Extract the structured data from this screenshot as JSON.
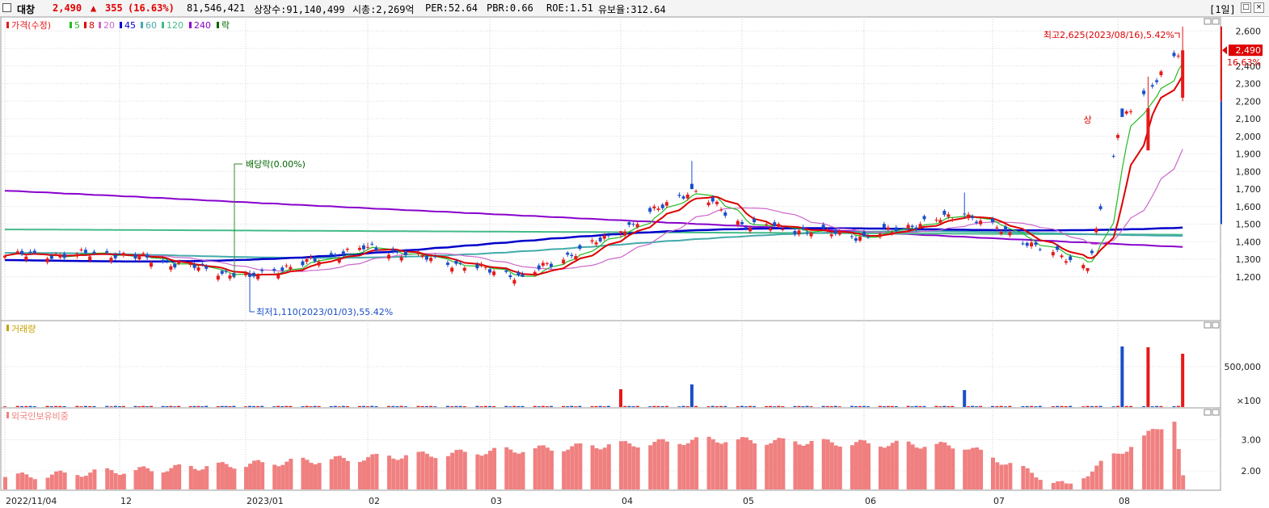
{
  "header": {
    "name": "대창",
    "price": "2,490",
    "change_arrow": "▲",
    "change": "355",
    "change_pct": "(16.63%)",
    "volume": "81,546,421",
    "listed": "상장수:91,140,499",
    "mktcap": "시총:2,269억",
    "per": "PER:52.64",
    "pbr": "PBR:0.66",
    "roe": "ROE:1.51",
    "retention": "유보율:312.64",
    "period": "[1일]"
  },
  "legend": {
    "price_label": "가격(수정)",
    "ma_items": [
      {
        "label": "5",
        "color": "#22bb22"
      },
      {
        "label": "8",
        "color": "#dd0000"
      },
      {
        "label": "20",
        "color": "#cc66cc"
      },
      {
        "label": "45",
        "color": "#0000cc"
      },
      {
        "label": "60",
        "color": "#44aaaa"
      },
      {
        "label": "120",
        "color": "#44bb88"
      },
      {
        "label": "240",
        "color": "#8800cc"
      }
    ],
    "ex_label": "락",
    "ex_color": "#006600",
    "volume_label": "거래량",
    "foreign_label": "외국인보유비중"
  },
  "annotations": {
    "high": "최고2,625(2023/08/16),5.42%",
    "low": "최저1,110(2023/01/03),55.42%",
    "dividend": "배당락(0.00%)",
    "upper_limit": "상",
    "current_price": "2,490",
    "current_pct": "16.63%"
  },
  "colors": {
    "up": "#e61919",
    "down": "#1a4fc8",
    "foreign": "#f08080"
  },
  "chart_data": [
    {
      "type": "candlestick",
      "title": "가격(수정)",
      "ylim": [
        1100,
        2700
      ],
      "y_ticks": [
        "1,200",
        "1,300",
        "1,400",
        "1,500",
        "1,600",
        "1,700",
        "1,800",
        "1,900",
        "2,000",
        "2,100",
        "2,200",
        "2,300",
        "2,400",
        "2,500",
        "2,600"
      ],
      "x_tick_labels": [
        "2022/11/04",
        "12",
        "2023/01",
        "02",
        "03",
        "04",
        "05",
        "06",
        "07",
        "08"
      ],
      "x_tick_dates": [
        "2022-11-04",
        "2022-12-01",
        "2023-01-02",
        "2023-02-01",
        "2023-03-02",
        "2023-04-03",
        "2023-05-02",
        "2023-06-01",
        "2023-07-03",
        "2023-08-01"
      ],
      "key_points": [
        {
          "date": "2022-11-04",
          "close": 1320
        },
        {
          "date": "2022-12-01",
          "close": 1330
        },
        {
          "date": "2023-01-03",
          "low": 1110,
          "close": 1200
        },
        {
          "date": "2023-02-01",
          "close": 1370
        },
        {
          "date": "2023-03-10",
          "close": 1200
        },
        {
          "date": "2023-04-03",
          "close": 1460
        },
        {
          "date": "2023-04-20",
          "high": 1860,
          "close": 1700
        },
        {
          "date": "2023-05-02",
          "close": 1500
        },
        {
          "date": "2023-06-01",
          "close": 1430
        },
        {
          "date": "2023-06-26",
          "high": 1680,
          "close": 1560
        },
        {
          "date": "2023-07-25",
          "close": 1250
        },
        {
          "date": "2023-08-02",
          "high": 2110,
          "close": 2110
        },
        {
          "date": "2023-08-08",
          "high": 2340
        },
        {
          "date": "2023-08-16",
          "high": 2625,
          "close": 2490
        }
      ],
      "moving_averages": [
        {
          "name": "240",
          "start": 1690,
          "end": 1370
        },
        {
          "name": "120",
          "start": 1470,
          "end": 1440
        },
        {
          "name": "60",
          "start": 1300,
          "end": 1460
        },
        {
          "name": "45",
          "start": 1290,
          "end": 1520
        }
      ]
    },
    {
      "type": "bar",
      "title": "거래량",
      "y_ticks": [
        "500,000"
      ],
      "unit_label": "×100",
      "key_points": [
        {
          "date": "2023-04-03",
          "value": 220000
        },
        {
          "date": "2023-04-20",
          "value": 280000
        },
        {
          "date": "2023-06-26",
          "value": 210000
        },
        {
          "date": "2023-08-02",
          "value": 750000
        },
        {
          "date": "2023-08-08",
          "value": 740000
        },
        {
          "date": "2023-08-16",
          "value": 660000
        }
      ]
    },
    {
      "type": "bar",
      "title": "외국인보유비중",
      "y_ticks": [
        "2.00",
        "3.00"
      ],
      "ylim": [
        1.4,
        3.9
      ],
      "key_points": [
        {
          "date": "2022-11-04",
          "value": 1.8
        },
        {
          "date": "2023-04-25",
          "value": 3.0
        },
        {
          "date": "2023-06-26",
          "value": 2.8
        },
        {
          "date": "2023-07-20",
          "value": 1.5
        },
        {
          "date": "2023-08-14",
          "value": 3.7
        },
        {
          "date": "2023-08-16",
          "value": 1.8
        }
      ]
    }
  ]
}
